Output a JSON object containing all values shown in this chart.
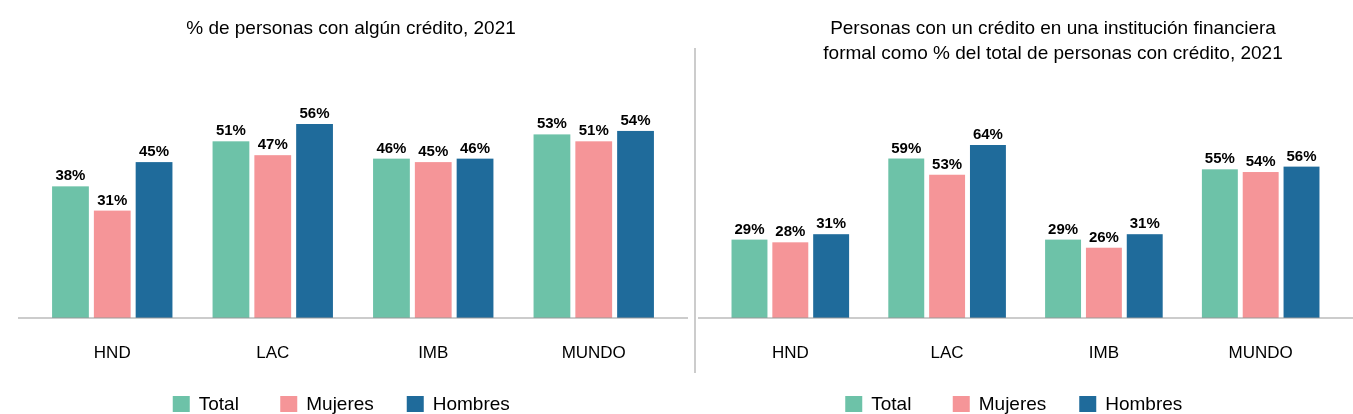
{
  "chart_data": [
    {
      "type": "bar",
      "title": "% de personas con algún crédito, 2021",
      "categories": [
        "HND",
        "LAC",
        "IMB",
        "MUNDO"
      ],
      "legend": "bottom",
      "series": [
        {
          "name": "Total",
          "color": "#6dc2a8",
          "values": [
            38,
            51,
            46,
            53
          ],
          "value_labels": [
            "38%",
            "51%",
            "46%",
            "53%"
          ]
        },
        {
          "name": "Mujeres",
          "color": "#f59598",
          "values": [
            31,
            47,
            45,
            51
          ],
          "value_labels": [
            "31%",
            "47%",
            "45%",
            "51%"
          ]
        },
        {
          "name": "Hombres",
          "color": "#1f6b9b",
          "values": [
            45,
            56,
            46,
            54
          ],
          "value_labels": [
            "45%",
            "56%",
            "46%",
            "54%"
          ]
        }
      ]
    },
    {
      "type": "bar",
      "title": "Personas con un crédito en una institución financiera formal como % del total de personas con crédito, 2021",
      "categories": [
        "HND",
        "LAC",
        "IMB",
        "MUNDO"
      ],
      "legend": "bottom",
      "series": [
        {
          "name": "Total",
          "color": "#6dc2a8",
          "values": [
            29,
            59,
            29,
            55
          ],
          "value_labels": [
            "29%",
            "59%",
            "29%",
            "55%"
          ]
        },
        {
          "name": "Mujeres",
          "color": "#f59598",
          "values": [
            28,
            53,
            26,
            54
          ],
          "value_labels": [
            "28%",
            "53%",
            "26%",
            "54%"
          ]
        },
        {
          "name": "Hombres",
          "color": "#1f6b9b",
          "values": [
            31,
            64,
            31,
            56
          ],
          "value_labels": [
            "31%",
            "64%",
            "31%",
            "56%"
          ]
        }
      ]
    }
  ]
}
